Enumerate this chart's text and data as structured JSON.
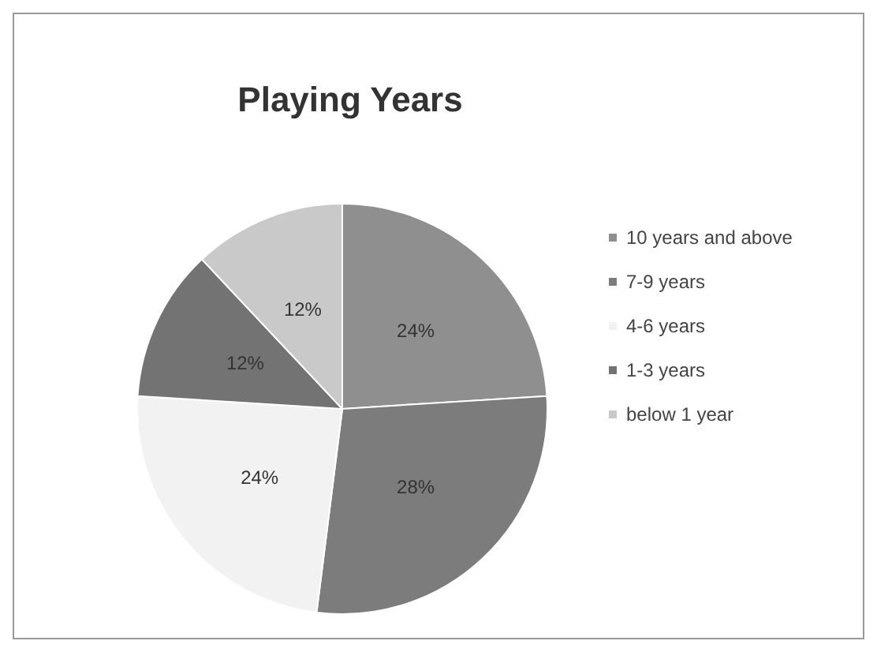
{
  "chart_data": {
    "type": "pie",
    "title": "Playing Years",
    "categories": [
      "10 years and above",
      "7-9 years",
      "4-6 years",
      "1-3 years",
      "below 1 year"
    ],
    "values": [
      24,
      28,
      24,
      12,
      12
    ],
    "colors": [
      "#8f8f8f",
      "#7c7c7c",
      "#f2f2f2",
      "#737373",
      "#c9c9c9"
    ],
    "value_labels": [
      "24%",
      "28%",
      "24%",
      "12%",
      "12%"
    ],
    "legend": "right"
  }
}
